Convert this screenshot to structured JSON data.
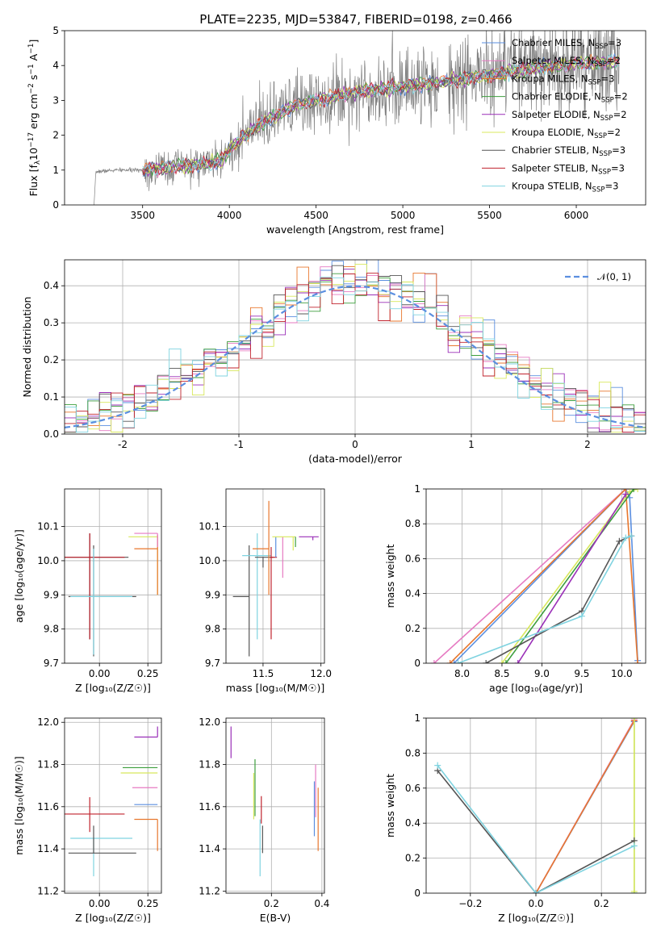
{
  "figure_title": "PLATE=2235, MJD=53847, FIBERID=0198, z=0.466",
  "colors": {
    "chabrier_miles": "#5b8fe0",
    "salpeter_miles": "#e67ac2",
    "kroupa_miles": "#e8772e",
    "chabrier_elodie": "#3d9e3d",
    "salpeter_elodie": "#9a2fb8",
    "kroupa_elodie": "#d8e85c",
    "chabrier_stelib": "#555555",
    "salpeter_stelib": "#c0232e",
    "kroupa_stelib": "#7fd3e0",
    "data": "#808080",
    "gauss": "#5b8fe0"
  },
  "chart_data": [
    {
      "id": "spectrum",
      "type": "line",
      "title": "PLATE=2235, MJD=53847, FIBERID=0198, z=0.466",
      "xlabel": "wavelength [Angstrom, rest frame]",
      "ylabel_main": "Flux [f",
      "ylabel_sub": "λ",
      "ylabel_rest": "10",
      "ylabel_exp": "−17",
      "ylabel_unit": " erg cm",
      "ylabel_unit_exp": "−2",
      "ylabel_s": " s",
      "ylabel_s_exp": "−1",
      "ylabel_a": " A",
      "ylabel_a_exp": "−1",
      "ylabel_end": "]",
      "xlim": [
        3050,
        6400
      ],
      "ylim": [
        0,
        5
      ],
      "xticks": [
        3500,
        4000,
        4500,
        5000,
        5500,
        6000
      ],
      "yticks": [
        0,
        1,
        2,
        3,
        4,
        5
      ],
      "grid": false,
      "legend_position": "top-right",
      "data_range": [
        3220,
        6250
      ],
      "data_continuum": [
        [
          3220,
          0.95
        ],
        [
          3350,
          1.0
        ],
        [
          3500,
          1.0
        ],
        [
          3800,
          1.15
        ],
        [
          3950,
          1.25
        ],
        [
          4000,
          1.6
        ],
        [
          4200,
          2.4
        ],
        [
          4400,
          2.9
        ],
        [
          4600,
          3.1
        ],
        [
          4800,
          3.3
        ],
        [
          5000,
          3.4
        ],
        [
          5200,
          3.5
        ],
        [
          5400,
          3.65
        ],
        [
          5600,
          3.8
        ],
        [
          5800,
          3.95
        ],
        [
          6000,
          4.05
        ],
        [
          6250,
          4.1
        ]
      ],
      "series": [
        {
          "name": "Chabrier MILES, N",
          "sub": "SSP",
          "tail": "=3",
          "color_key": "chabrier_miles"
        },
        {
          "name": "Salpeter MILES, N",
          "sub": "SSP",
          "tail": "=2",
          "color_key": "salpeter_miles"
        },
        {
          "name": "Kroupa MILES, N",
          "sub": "SSP",
          "tail": "=3",
          "color_key": "kroupa_miles"
        },
        {
          "name": "Chabrier ELODIE, N",
          "sub": "SSP",
          "tail": "=2",
          "color_key": "chabrier_elodie"
        },
        {
          "name": "Salpeter ELODIE, N",
          "sub": "SSP",
          "tail": "=2",
          "color_key": "salpeter_elodie"
        },
        {
          "name": "Kroupa ELODIE, N",
          "sub": "SSP",
          "tail": "=2",
          "color_key": "kroupa_elodie"
        },
        {
          "name": "Chabrier STELIB, N",
          "sub": "SSP",
          "tail": "=3",
          "color_key": "chabrier_stelib"
        },
        {
          "name": "Salpeter STELIB, N",
          "sub": "SSP",
          "tail": "=3",
          "color_key": "salpeter_stelib"
        },
        {
          "name": "Kroupa STELIB, N",
          "sub": "SSP",
          "tail": "=3",
          "color_key": "kroupa_stelib"
        }
      ]
    },
    {
      "id": "residuals",
      "type": "bar",
      "xlabel": "(data-model)/error",
      "ylabel": "Normed distribution",
      "xlim": [
        -2.5,
        2.5
      ],
      "ylim": [
        0,
        0.47
      ],
      "xticks": [
        -2,
        -1,
        0,
        1,
        2
      ],
      "yticks": [
        0.0,
        0.1,
        0.2,
        0.3,
        0.4
      ],
      "grid": true,
      "legend_position": "top-right",
      "legend_label": "𝒩(0, 1)",
      "bin_width": 0.1,
      "bin_start": -2.5,
      "gaussian": {
        "mu": 0,
        "sigma": 1
      }
    },
    {
      "id": "age_vs_Z",
      "type": "scatter",
      "xlabel": "Z [log₁₀(Z/Z☉)]",
      "ylabel": "age  [log₁₀(age/yr)]",
      "xlim": [
        -0.18,
        0.32
      ],
      "ylim": [
        9.7,
        10.21
      ],
      "xticks": [
        0.0,
        0.25
      ],
      "xtick_labels": [
        "0.00",
        "0.25"
      ],
      "yticks": [
        9.7,
        9.8,
        9.9,
        10.0,
        10.1
      ],
      "ytick_labels": [
        "9.7",
        "9.8",
        "9.9",
        "10.0",
        "10.1"
      ],
      "grid": true,
      "points": [
        {
          "color_key": "chabrier_stelib",
          "x": -0.05,
          "y": 10.01,
          "xerr": [
            0.14,
            0.2
          ],
          "yerr": [
            0.24,
            0.07
          ]
        },
        {
          "color_key": "salpeter_stelib",
          "x": -0.05,
          "y": 10.01,
          "xerr": [
            0.13,
            0.18
          ],
          "yerr": [
            0.24,
            0.07
          ]
        },
        {
          "color_key": "chabrier_stelib",
          "x": -0.03,
          "y": 9.895,
          "xerr": [
            0.13,
            0.22
          ],
          "yerr": [
            0.175,
            0.15
          ]
        },
        {
          "color_key": "kroupa_stelib",
          "x": -0.03,
          "y": 9.895,
          "xerr": [
            0.12,
            0.2
          ],
          "yerr": [
            0.17,
            0.14
          ]
        },
        {
          "color_key": "kroupa_elodie",
          "x": 0.3,
          "y": 10.07,
          "xerr": [
            0.15,
            0.0
          ],
          "yerr": [
            0.17,
            0.0
          ]
        },
        {
          "color_key": "kroupa_miles",
          "x": 0.3,
          "y": 10.035,
          "xerr": [
            0.12,
            0.0
          ],
          "yerr": [
            0.135,
            0.04
          ]
        },
        {
          "color_key": "salpeter_miles",
          "x": 0.3,
          "y": 10.08,
          "xerr": [
            0.12,
            0.0
          ],
          "yerr": [
            0.04,
            0.0
          ]
        }
      ]
    },
    {
      "id": "age_vs_mass",
      "type": "scatter",
      "xlabel": "mass [log₁₀(M/M☉)]",
      "xlim": [
        11.18,
        12.03
      ],
      "ylim": [
        9.7,
        10.21
      ],
      "xticks": [
        11.5,
        12.0
      ],
      "xtick_labels": [
        "11.5",
        "12.0"
      ],
      "yticks": [
        9.7,
        9.8,
        9.9,
        10.0,
        10.1
      ],
      "ytick_labels": [
        "9.7",
        "9.8",
        "9.9",
        "10.0",
        "10.1"
      ],
      "grid": true,
      "points": [
        {
          "color_key": "chabrier_stelib",
          "x": 11.38,
          "y": 9.895,
          "xerr": [
            0.14,
            0.0
          ],
          "yerr": [
            0.175,
            0.15
          ]
        },
        {
          "color_key": "kroupa_stelib",
          "x": 11.45,
          "y": 10.015,
          "xerr": [
            0.13,
            0.12
          ],
          "yerr": [
            0.245,
            0.065
          ]
        },
        {
          "color_key": "chabrier_stelib",
          "x": 11.5,
          "y": 10.01,
          "xerr": [
            0.07,
            0.09
          ],
          "yerr": [
            0.03,
            0.0
          ]
        },
        {
          "color_key": "salpeter_stelib",
          "x": 11.57,
          "y": 10.01,
          "xerr": [
            0.01,
            0.05
          ],
          "yerr": [
            0.24,
            0.03
          ]
        },
        {
          "color_key": "kroupa_miles",
          "x": 11.55,
          "y": 10.035,
          "xerr": [
            0.14,
            0.0
          ],
          "yerr": [
            0.135,
            0.14
          ]
        },
        {
          "color_key": "chabrier_miles",
          "x": 11.61,
          "y": 10.07,
          "xerr": [
            0.0,
            0.0
          ],
          "yerr": [
            0.06,
            0.0
          ]
        },
        {
          "color_key": "salpeter_miles",
          "x": 11.67,
          "y": 10.07,
          "xerr": [
            0.0,
            0.0
          ],
          "yerr": [
            0.12,
            0.0
          ]
        },
        {
          "color_key": "kroupa_elodie",
          "x": 11.76,
          "y": 10.07,
          "xerr": [
            0.18,
            0.02
          ],
          "yerr": [
            0.04,
            0.0
          ]
        },
        {
          "color_key": "chabrier_elodie",
          "x": 11.78,
          "y": 10.07,
          "xerr": [
            0.0,
            0.0
          ],
          "yerr": [
            0.03,
            0.0
          ]
        },
        {
          "color_key": "salpeter_elodie",
          "x": 11.93,
          "y": 10.07,
          "xerr": [
            0.12,
            0.05
          ],
          "yerr": [
            0.01,
            0.0
          ]
        }
      ]
    },
    {
      "id": "weight_vs_age",
      "type": "line",
      "xlabel": "age  [log₁₀(age/yr)]",
      "ylabel": "mass weight",
      "xlim": [
        7.55,
        10.3
      ],
      "ylim": [
        0,
        1.0
      ],
      "xticks": [
        8.0,
        8.5,
        9.0,
        9.5,
        10.0
      ],
      "xtick_labels": [
        "8.0",
        "8.5",
        "9.0",
        "9.5",
        "10.0"
      ],
      "yticks": [
        0.0,
        0.2,
        0.4,
        0.6,
        0.8,
        1.0
      ],
      "grid": true,
      "series": [
        {
          "color_key": "salpeter_miles",
          "x": [
            7.65,
            10.05
          ],
          "y": [
            0.0,
            1.0
          ]
        },
        {
          "color_key": "chabrier_miles",
          "x": [
            7.9,
            10.05,
            10.1,
            10.2
          ],
          "y": [
            0.0,
            1.0,
            0.95,
            0.015
          ]
        },
        {
          "color_key": "kroupa_miles",
          "x": [
            7.85,
            10.05,
            10.2
          ],
          "y": [
            0.0,
            1.0,
            0.0
          ]
        },
        {
          "color_key": "kroupa_elodie",
          "x": [
            8.5,
            10.1,
            10.2
          ],
          "y": [
            0.0,
            0.985,
            1.0
          ]
        },
        {
          "color_key": "chabrier_elodie",
          "x": [
            8.55,
            10.15
          ],
          "y": [
            0.0,
            1.0
          ]
        },
        {
          "color_key": "salpeter_elodie",
          "x": [
            8.7,
            10.05
          ],
          "y": [
            0.0,
            0.97
          ]
        },
        {
          "color_key": "chabrier_stelib",
          "x": [
            8.3,
            9.5,
            9.97,
            10.12
          ],
          "y": [
            0.0,
            0.3,
            0.7,
            0.73
          ]
        },
        {
          "color_key": "kroupa_stelib",
          "x": [
            7.95,
            9.5,
            10.05,
            10.12
          ],
          "y": [
            0.0,
            0.27,
            0.72,
            0.73
          ]
        }
      ]
    },
    {
      "id": "mass_vs_Z",
      "type": "scatter",
      "xlabel": "Z [log₁₀(Z/Z☉)]",
      "ylabel": "mass [log₁₀(M/M☉)]",
      "xlim": [
        -0.18,
        0.32
      ],
      "ylim": [
        11.19,
        12.02
      ],
      "xticks": [
        0.0,
        0.25
      ],
      "xtick_labels": [
        "0.00",
        "0.25"
      ],
      "yticks": [
        11.2,
        11.4,
        11.6,
        11.8,
        12.0
      ],
      "ytick_labels": [
        "11.2",
        "11.4",
        "11.6",
        "11.8",
        "12.0"
      ],
      "grid": true,
      "points": [
        {
          "color_key": "salpeter_elodie",
          "x": 0.3,
          "y": 11.93,
          "xerr": [
            0.12,
            0.0
          ],
          "yerr": [
            0.0,
            0.05
          ]
        },
        {
          "color_key": "chabrier_elodie",
          "x": 0.3,
          "y": 11.785,
          "xerr": [
            0.18,
            0.0
          ],
          "yerr": [
            0.0,
            0.0
          ]
        },
        {
          "color_key": "kroupa_elodie",
          "x": 0.3,
          "y": 11.76,
          "xerr": [
            0.19,
            0.0
          ],
          "yerr": [
            0.0,
            0.0
          ]
        },
        {
          "color_key": "salpeter_miles",
          "x": 0.3,
          "y": 11.69,
          "xerr": [
            0.13,
            0.0
          ],
          "yerr": [
            0.0,
            0.0
          ]
        },
        {
          "color_key": "chabrier_miles",
          "x": 0.3,
          "y": 11.61,
          "xerr": [
            0.12,
            0.0
          ],
          "yerr": [
            0.0,
            0.0
          ]
        },
        {
          "color_key": "kroupa_miles",
          "x": 0.3,
          "y": 11.54,
          "xerr": [
            0.12,
            0.0
          ],
          "yerr": [
            0.15,
            0.0
          ]
        },
        {
          "color_key": "salpeter_stelib",
          "x": -0.05,
          "y": 11.565,
          "xerr": [
            0.13,
            0.18
          ],
          "yerr": [
            0.085,
            0.08
          ]
        },
        {
          "color_key": "kroupa_stelib",
          "x": -0.03,
          "y": 11.45,
          "xerr": [
            0.12,
            0.2
          ],
          "yerr": [
            0.18,
            0.0
          ]
        },
        {
          "color_key": "chabrier_stelib",
          "x": -0.03,
          "y": 11.38,
          "xerr": [
            0.13,
            0.22
          ],
          "yerr": [
            0.0,
            0.13
          ]
        }
      ]
    },
    {
      "id": "mass_vs_ebv",
      "type": "scatter",
      "xlabel": "E(B-V)",
      "xlim": [
        0.02,
        0.41
      ],
      "ylim": [
        11.19,
        12.02
      ],
      "xticks": [
        0.2,
        0.4
      ],
      "xtick_labels": [
        "0.2",
        "0.4"
      ],
      "yticks": [
        11.2,
        11.4,
        11.6,
        11.8,
        12.0
      ],
      "ytick_labels": [
        "11.2",
        "11.4",
        "11.6",
        "11.8",
        "12.0"
      ],
      "grid": true,
      "points": [
        {
          "color_key": "salpeter_elodie",
          "x": 0.04,
          "y": 11.93,
          "yerr": [
            0.1,
            0.05
          ]
        },
        {
          "color_key": "chabrier_elodie",
          "x": 0.135,
          "y": 11.785,
          "yerr": [
            0.23,
            0.04
          ]
        },
        {
          "color_key": "kroupa_elodie",
          "x": 0.13,
          "y": 11.76,
          "yerr": [
            0.22,
            0.0
          ]
        },
        {
          "color_key": "salpeter_stelib",
          "x": 0.16,
          "y": 11.6,
          "yerr": [
            0.08,
            0.05
          ]
        },
        {
          "color_key": "kroupa_stelib",
          "x": 0.155,
          "y": 11.45,
          "yerr": [
            0.18,
            0.09
          ]
        },
        {
          "color_key": "chabrier_stelib",
          "x": 0.165,
          "y": 11.38,
          "yerr": [
            0.0,
            0.13
          ]
        },
        {
          "color_key": "chabrier_miles",
          "x": 0.37,
          "y": 11.6,
          "yerr": [
            0.14,
            0.12
          ]
        },
        {
          "color_key": "salpeter_miles",
          "x": 0.375,
          "y": 11.69,
          "yerr": [
            0.14,
            0.11
          ]
        },
        {
          "color_key": "kroupa_miles",
          "x": 0.385,
          "y": 11.54,
          "yerr": [
            0.15,
            0.15
          ]
        }
      ]
    },
    {
      "id": "weight_vs_Z",
      "type": "line",
      "xlabel": "Z [log₁₀(Z/Z☉)]",
      "ylabel": "mass weight",
      "xlim": [
        -0.335,
        0.335
      ],
      "ylim": [
        0,
        1.0
      ],
      "xticks": [
        -0.2,
        0.0,
        0.2
      ],
      "xtick_labels": [
        "−0.2",
        "0.0",
        "0.2"
      ],
      "yticks": [
        0.0,
        0.2,
        0.4,
        0.6,
        0.8,
        1.0
      ],
      "grid": true,
      "series": [
        {
          "color_key": "chabrier_miles",
          "x": [
            0.0,
            0.3
          ],
          "y": [
            0.0,
            0.98
          ]
        },
        {
          "color_key": "salpeter_miles",
          "x": [
            0.0,
            0.3
          ],
          "y": [
            0.0,
            0.99
          ]
        },
        {
          "color_key": "kroupa_miles",
          "x": [
            0.0,
            0.3
          ],
          "y": [
            0.0,
            0.985
          ]
        },
        {
          "color_key": "chabrier_elodie",
          "x": [
            0.3,
            0.3
          ],
          "y": [
            0.0,
            1.0
          ]
        },
        {
          "color_key": "kroupa_elodie",
          "x": [
            0.3,
            0.3
          ],
          "y": [
            0.01,
            1.0
          ]
        },
        {
          "color_key": "chabrier_stelib",
          "x": [
            -0.3,
            0.0,
            0.3
          ],
          "y": [
            0.7,
            0.0,
            0.3
          ]
        },
        {
          "color_key": "kroupa_stelib",
          "x": [
            -0.3,
            0.0,
            0.3
          ],
          "y": [
            0.73,
            0.0,
            0.27
          ]
        }
      ]
    }
  ]
}
